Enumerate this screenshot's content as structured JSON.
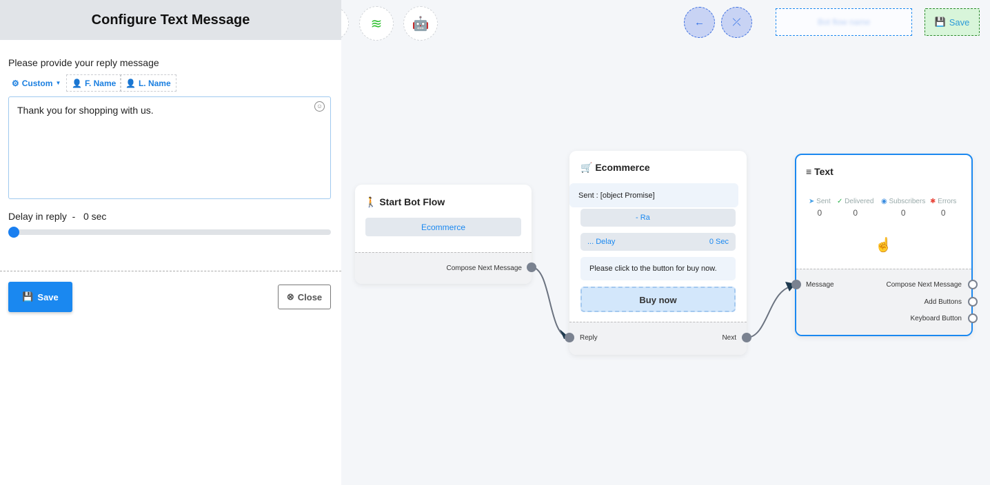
{
  "panel": {
    "title": "Configure Text Message",
    "prompt": "Please provide your reply message",
    "custom": "Custom",
    "fname": "F. Name",
    "lname": "L. Name",
    "message": "Thank you for shopping with us.",
    "delay_label": "Delay in reply",
    "delay_sep": "-",
    "delay_value": "0 sec",
    "delay_fraction": 0,
    "save": "Save",
    "close": "Close"
  },
  "toolbar": {
    "save": "Save",
    "flow_name": "Bot flow name"
  },
  "nodes": {
    "start": {
      "title": "Start Bot Flow",
      "button": "Ecommerce",
      "port": "Compose Next Message"
    },
    "ecommerce": {
      "title": "Ecommerce",
      "sent": "Sent : [object Promise]",
      "row": "- Ra",
      "delay": "... Delay",
      "delay_value": "0 Sec",
      "text": "Please click to the button for buy now.",
      "buy": "Buy now",
      "reply": "Reply",
      "next": "Next"
    },
    "text": {
      "title": "Text",
      "stats": [
        {
          "label": "Sent",
          "value": "0",
          "color": "#4aa3e8"
        },
        {
          "label": "Delivered",
          "value": "0",
          "color": "#2bb24c"
        },
        {
          "label": "Subscribers",
          "value": "0",
          "color": "#3a8de0"
        },
        {
          "label": "Errors",
          "value": "0",
          "color": "#e8463b"
        }
      ],
      "in": "Message",
      "outs": [
        "Compose Next Message",
        "Add Buttons",
        "Keyboard Button"
      ]
    }
  }
}
